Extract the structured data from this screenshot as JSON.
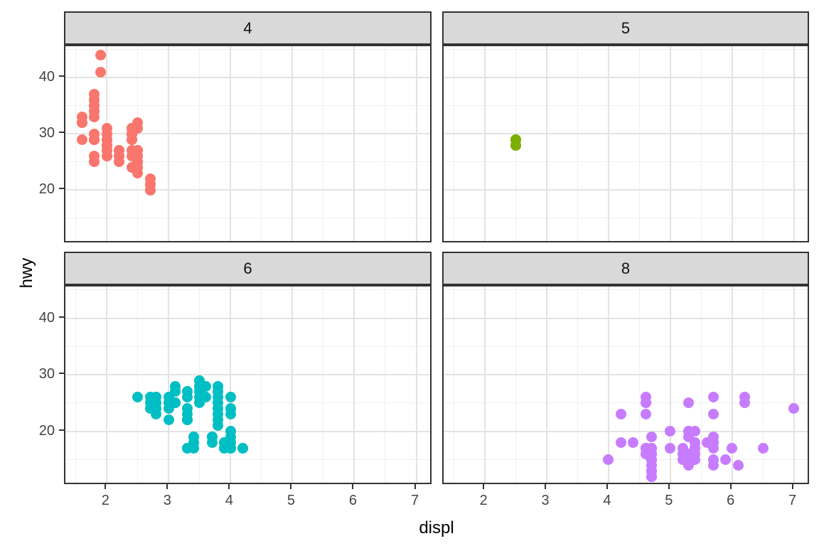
{
  "chart_data": {
    "type": "scatter",
    "title": "",
    "xlabel": "displ",
    "ylabel": "hwy",
    "x_ticks": [
      2,
      3,
      4,
      5,
      6,
      7
    ],
    "x_minor_ticks": [
      1.5,
      2.5,
      3.5,
      4.5,
      5.5,
      6.5
    ],
    "y_ticks": [
      20,
      30,
      40
    ],
    "y_minor_ticks": [
      15,
      25,
      35,
      45
    ],
    "xlim": [
      1.33,
      7.27
    ],
    "ylim": [
      10.4,
      45.6
    ],
    "grid": true,
    "legend_position": "none",
    "facet_variable_values": [
      "4",
      "5",
      "6",
      "8"
    ],
    "facets": [
      {
        "label": "4",
        "color": "#F8766D",
        "points": [
          [
            1.6,
            33
          ],
          [
            1.6,
            32
          ],
          [
            1.6,
            32
          ],
          [
            1.6,
            29
          ],
          [
            1.6,
            32
          ],
          [
            1.8,
            29
          ],
          [
            1.8,
            29
          ],
          [
            1.8,
            26
          ],
          [
            1.8,
            25
          ],
          [
            1.8,
            34
          ],
          [
            1.8,
            36
          ],
          [
            1.8,
            36
          ],
          [
            1.8,
            30
          ],
          [
            1.8,
            33
          ],
          [
            1.8,
            34
          ],
          [
            1.8,
            35
          ],
          [
            1.8,
            37
          ],
          [
            1.8,
            29
          ],
          [
            1.8,
            29
          ],
          [
            1.8,
            35
          ],
          [
            1.9,
            44
          ],
          [
            1.9,
            41
          ],
          [
            2.0,
            31
          ],
          [
            2.0,
            30
          ],
          [
            2.0,
            28
          ],
          [
            2.0,
            27
          ],
          [
            2.0,
            29
          ],
          [
            2.0,
            26
          ],
          [
            2.0,
            27
          ],
          [
            2.0,
            26
          ],
          [
            2.0,
            26
          ],
          [
            2.0,
            29
          ],
          [
            2.0,
            29
          ],
          [
            2.0,
            28
          ],
          [
            2.0,
            29
          ],
          [
            2.0,
            29
          ],
          [
            2.0,
            29
          ],
          [
            2.0,
            29
          ],
          [
            2.0,
            28
          ],
          [
            2.0,
            29
          ],
          [
            2.0,
            29
          ],
          [
            2.0,
            29
          ],
          [
            2.2,
            27
          ],
          [
            2.2,
            27
          ],
          [
            2.2,
            26
          ],
          [
            2.2,
            27
          ],
          [
            2.2,
            25
          ],
          [
            2.2,
            26
          ],
          [
            2.2,
            26
          ],
          [
            2.4,
            31
          ],
          [
            2.4,
            29
          ],
          [
            2.4,
            31
          ],
          [
            2.4,
            31
          ],
          [
            2.4,
            31
          ],
          [
            2.4,
            30
          ],
          [
            2.4,
            26
          ],
          [
            2.4,
            27
          ],
          [
            2.4,
            30
          ],
          [
            2.4,
            29
          ],
          [
            2.4,
            30
          ],
          [
            2.4,
            24
          ],
          [
            2.4,
            30
          ],
          [
            2.5,
            25
          ],
          [
            2.5,
            24
          ],
          [
            2.5,
            27
          ],
          [
            2.5,
            25
          ],
          [
            2.5,
            26
          ],
          [
            2.5,
            23
          ],
          [
            2.5,
            25
          ],
          [
            2.5,
            27
          ],
          [
            2.5,
            25
          ],
          [
            2.5,
            26
          ],
          [
            2.5,
            27
          ],
          [
            2.5,
            31
          ],
          [
            2.5,
            32
          ],
          [
            2.5,
            26
          ],
          [
            2.5,
            26
          ],
          [
            2.7,
            22
          ],
          [
            2.7,
            20
          ],
          [
            2.7,
            20
          ],
          [
            2.7,
            21
          ]
        ]
      },
      {
        "label": "5",
        "color": "#7CAE00",
        "points": [
          [
            2.5,
            28
          ],
          [
            2.5,
            29
          ],
          [
            2.5,
            29
          ],
          [
            2.5,
            28
          ]
        ]
      },
      {
        "label": "6",
        "color": "#00BFC4",
        "points": [
          [
            2.5,
            26
          ],
          [
            2.7,
            26
          ],
          [
            2.7,
            25
          ],
          [
            2.7,
            24
          ],
          [
            2.8,
            26
          ],
          [
            2.8,
            26
          ],
          [
            2.8,
            25
          ],
          [
            2.8,
            25
          ],
          [
            2.8,
            24
          ],
          [
            2.8,
            24
          ],
          [
            2.8,
            23
          ],
          [
            2.8,
            26
          ],
          [
            2.8,
            26
          ],
          [
            2.8,
            24
          ],
          [
            3.0,
            26
          ],
          [
            3.0,
            25
          ],
          [
            3.0,
            24
          ],
          [
            3.0,
            22
          ],
          [
            3.0,
            25
          ],
          [
            3.1,
            27
          ],
          [
            3.1,
            25
          ],
          [
            3.1,
            25
          ],
          [
            3.1,
            25
          ],
          [
            3.1,
            28
          ],
          [
            3.1,
            27
          ],
          [
            3.1,
            27
          ],
          [
            3.3,
            26
          ],
          [
            3.3,
            22
          ],
          [
            3.3,
            22
          ],
          [
            3.3,
            22
          ],
          [
            3.3,
            24
          ],
          [
            3.3,
            17
          ],
          [
            3.3,
            17
          ],
          [
            3.3,
            17
          ],
          [
            3.3,
            27
          ],
          [
            3.3,
            23
          ],
          [
            3.4,
            19
          ],
          [
            3.4,
            17
          ],
          [
            3.4,
            19
          ],
          [
            3.4,
            18
          ],
          [
            3.5,
            29
          ],
          [
            3.5,
            26
          ],
          [
            3.5,
            26
          ],
          [
            3.5,
            25
          ],
          [
            3.5,
            28
          ],
          [
            3.5,
            29
          ],
          [
            3.5,
            27
          ],
          [
            3.6,
            26
          ],
          [
            3.6,
            28
          ],
          [
            3.7,
            19
          ],
          [
            3.7,
            18
          ],
          [
            3.7,
            19
          ],
          [
            3.8,
            26
          ],
          [
            3.8,
            25
          ],
          [
            3.8,
            28
          ],
          [
            3.8,
            27
          ],
          [
            3.8,
            28
          ],
          [
            3.8,
            23
          ],
          [
            3.8,
            22
          ],
          [
            3.8,
            21
          ],
          [
            3.8,
            24
          ],
          [
            3.9,
            17
          ],
          [
            3.9,
            17
          ],
          [
            3.9,
            18
          ],
          [
            3.9,
            18
          ],
          [
            4.0,
            17
          ],
          [
            4.0,
            17
          ],
          [
            4.0,
            18
          ],
          [
            4.0,
            17
          ],
          [
            4.0,
            26
          ],
          [
            4.0,
            24
          ],
          [
            4.0,
            23
          ],
          [
            4.0,
            20
          ],
          [
            4.0,
            18
          ],
          [
            4.0,
            19
          ],
          [
            4.0,
            17
          ],
          [
            4.0,
            17
          ],
          [
            4.2,
            17
          ],
          [
            4.2,
            17
          ]
        ]
      },
      {
        "label": "8",
        "color": "#C77CFF",
        "points": [
          [
            4.0,
            15
          ],
          [
            4.2,
            23
          ],
          [
            4.2,
            18
          ],
          [
            4.4,
            18
          ],
          [
            4.6,
            25
          ],
          [
            4.6,
            25
          ],
          [
            4.6,
            26
          ],
          [
            4.6,
            23
          ],
          [
            4.6,
            16
          ],
          [
            4.6,
            16
          ],
          [
            4.6,
            17
          ],
          [
            4.6,
            17
          ],
          [
            4.6,
            16
          ],
          [
            4.6,
            17
          ],
          [
            4.7,
            17
          ],
          [
            4.7,
            15
          ],
          [
            4.7,
            13
          ],
          [
            4.7,
            13
          ],
          [
            4.7,
            12
          ],
          [
            4.7,
            17
          ],
          [
            4.7,
            16
          ],
          [
            4.7,
            12
          ],
          [
            4.7,
            16
          ],
          [
            4.7,
            15
          ],
          [
            4.7,
            16
          ],
          [
            4.7,
            12
          ],
          [
            4.7,
            14
          ],
          [
            4.7,
            17
          ],
          [
            4.7,
            19
          ],
          [
            4.7,
            17
          ],
          [
            4.7,
            15
          ],
          [
            5.0,
            20
          ],
          [
            5.0,
            17
          ],
          [
            5.2,
            17
          ],
          [
            5.2,
            15
          ],
          [
            5.2,
            16
          ],
          [
            5.2,
            16
          ],
          [
            5.2,
            15
          ],
          [
            5.3,
            20
          ],
          [
            5.3,
            15
          ],
          [
            5.3,
            20
          ],
          [
            5.3,
            14
          ],
          [
            5.3,
            19
          ],
          [
            5.3,
            25
          ],
          [
            5.3,
            16
          ],
          [
            5.3,
            15
          ],
          [
            5.4,
            17
          ],
          [
            5.4,
            17
          ],
          [
            5.4,
            18
          ],
          [
            5.4,
            15
          ],
          [
            5.4,
            17
          ],
          [
            5.4,
            16
          ],
          [
            5.4,
            18
          ],
          [
            5.4,
            20
          ],
          [
            5.6,
            18
          ],
          [
            5.7,
            26
          ],
          [
            5.7,
            23
          ],
          [
            5.7,
            17
          ],
          [
            5.7,
            14
          ],
          [
            5.7,
            18
          ],
          [
            5.7,
            15
          ],
          [
            5.7,
            18
          ],
          [
            5.7,
            19
          ],
          [
            5.9,
            15
          ],
          [
            6.0,
            17
          ],
          [
            6.1,
            14
          ],
          [
            6.2,
            26
          ],
          [
            6.2,
            25
          ],
          [
            6.5,
            17
          ],
          [
            7.0,
            24
          ]
        ]
      }
    ]
  },
  "theme": {
    "strip_fill": "#D9D9D9",
    "panel_border": "#333333",
    "grid_major_color": "#E3E3E3",
    "grid_minor_color": "#EFEFEF",
    "tick_label_color": "#444444",
    "axis_title_color": "#000000",
    "background": "#FFFFFF"
  }
}
